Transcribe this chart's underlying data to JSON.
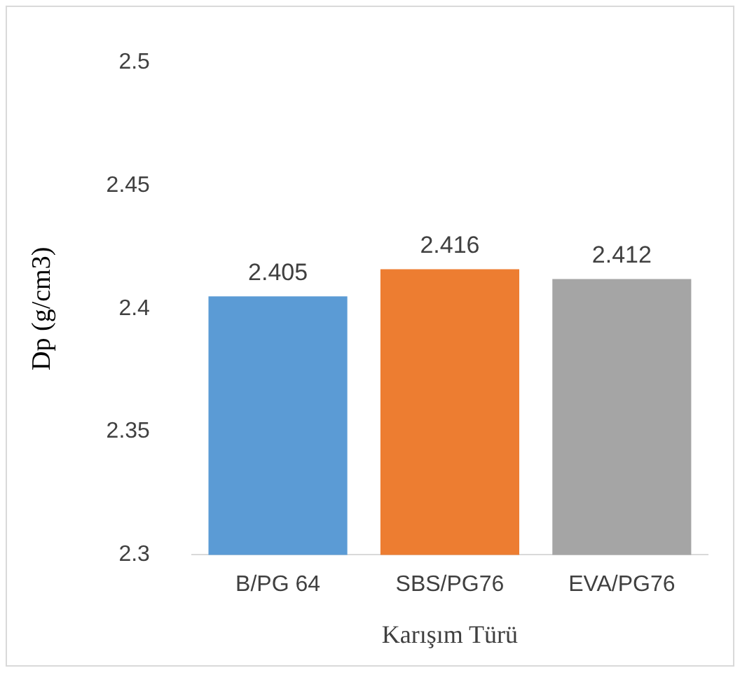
{
  "chart_data": {
    "type": "bar",
    "xlabel": "Karışım Türü",
    "ylabel": "Dp (g/cm3)",
    "categories": [
      "B/PG 64",
      "SBS/PG76",
      "EVA/PG76"
    ],
    "values": [
      2.405,
      2.416,
      2.412
    ],
    "colors": [
      "#5b9bd5",
      "#ed7d31",
      "#a5a5a5"
    ],
    "ylim": [
      2.3,
      2.5
    ],
    "yticks": [
      2.3,
      2.35,
      2.4,
      2.45,
      2.5
    ],
    "grid": false,
    "legend": false,
    "data_labels": true
  }
}
